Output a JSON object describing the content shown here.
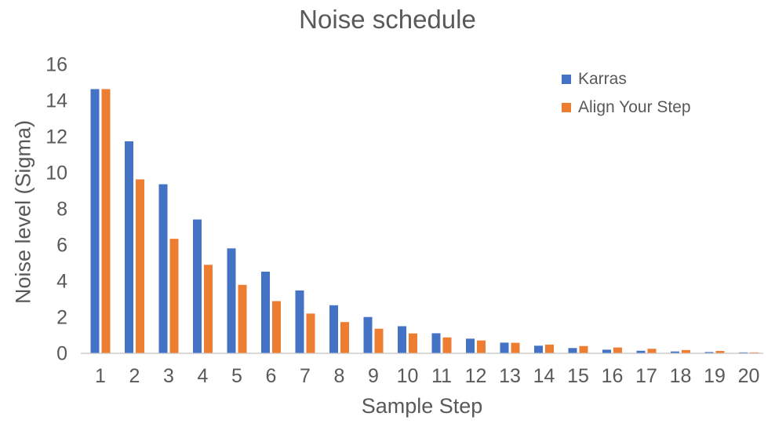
{
  "chart_data": {
    "type": "bar",
    "title": "Noise schedule",
    "xlabel": "Sample Step",
    "ylabel": "Noise level (Sigma)",
    "categories": [
      1,
      2,
      3,
      4,
      5,
      6,
      7,
      8,
      9,
      10,
      11,
      12,
      13,
      14,
      15,
      16,
      17,
      18,
      19,
      20
    ],
    "series": [
      {
        "name": "Karras",
        "color": "#4472C4",
        "values": [
          14.61,
          11.72,
          9.34,
          7.39,
          5.79,
          4.5,
          3.46,
          2.64,
          1.99,
          1.48,
          1.09,
          0.79,
          0.57,
          0.4,
          0.27,
          0.18,
          0.12,
          0.08,
          0.05,
          0.03
        ]
      },
      {
        "name": "Align Your Step",
        "color": "#ED7D31",
        "values": [
          14.61,
          9.61,
          6.32,
          4.88,
          3.77,
          2.87,
          2.18,
          1.71,
          1.34,
          1.08,
          0.86,
          0.69,
          0.56,
          0.46,
          0.38,
          0.3,
          0.23,
          0.16,
          0.11,
          0.03
        ]
      }
    ],
    "ylim": [
      0,
      16
    ],
    "yticks": [
      0,
      2,
      4,
      6,
      8,
      10,
      12,
      14,
      16
    ],
    "grid": false,
    "legend_position": "top-right",
    "axis_line_color": "#D9D9D9",
    "text_color": "#595959"
  }
}
